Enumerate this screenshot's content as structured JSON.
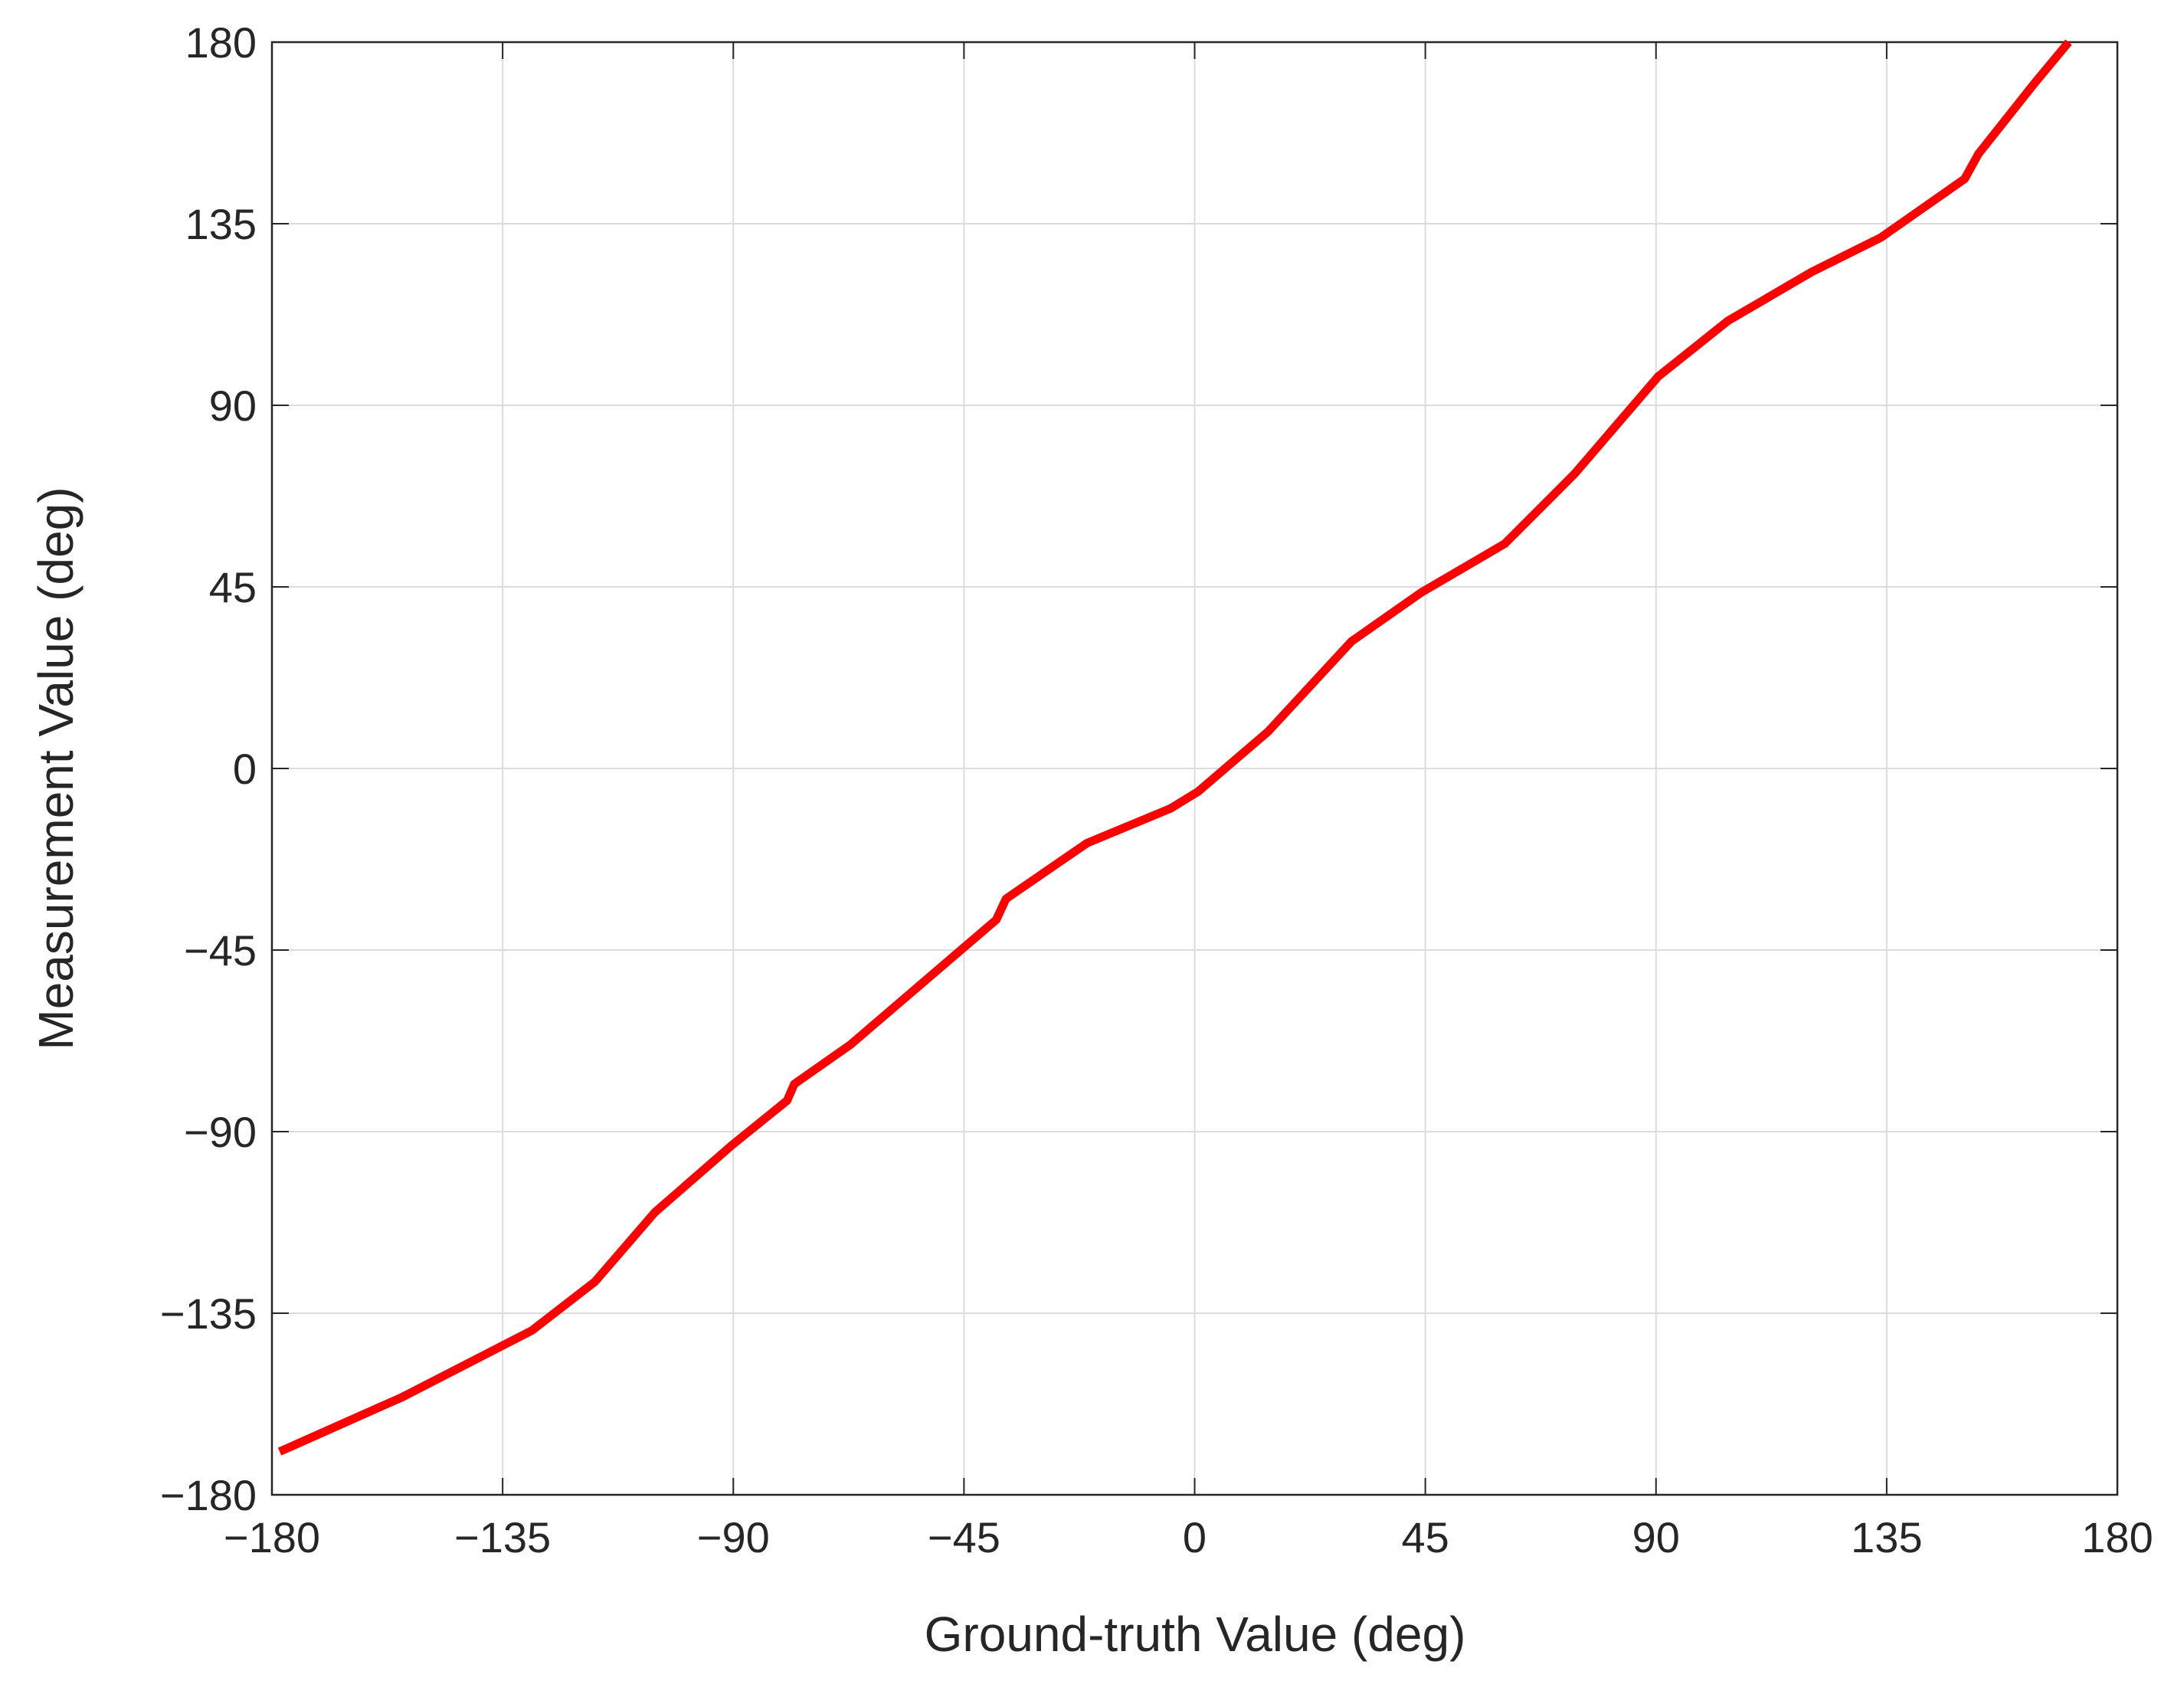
{
  "chart_data": {
    "type": "line",
    "xlabel": "Ground-truth Value (deg)",
    "ylabel": "Measurement Value (deg)",
    "xlim": [
      -180,
      180
    ],
    "ylim": [
      -180,
      180
    ],
    "xticks": [
      {
        "value": -180,
        "label": "−180"
      },
      {
        "value": -135,
        "label": "−135"
      },
      {
        "value": -90,
        "label": "−90"
      },
      {
        "value": -45,
        "label": "−45"
      },
      0,
      45,
      90,
      135,
      180
    ],
    "yticks": [
      {
        "value": -180,
        "label": "−180"
      },
      {
        "value": -135,
        "label": "−135"
      },
      {
        "value": -90,
        "label": "−90"
      },
      {
        "value": -45,
        "label": "−45"
      },
      0,
      45,
      90,
      135,
      180
    ],
    "grid": true,
    "series": [
      {
        "color": "#ff0000",
        "x": [
          -178.5,
          -154.6,
          -129.3,
          -117,
          -105.3,
          -90.3,
          -79.5,
          -78.1,
          -67.2,
          -53.6,
          -38.7,
          -36.8,
          -21,
          -4.7,
          0.7,
          14.3,
          30.6,
          44.2,
          60.5,
          74.1,
          90.4,
          104,
          120.3,
          133.9,
          150.2,
          152.9,
          163.7,
          170.5
        ],
        "values": [
          -169.3,
          -155.8,
          -139.3,
          -127.2,
          -110,
          -93.4,
          -82.3,
          -78.2,
          -68.5,
          -53.7,
          -37.5,
          -32.3,
          -18.5,
          -9.9,
          -5.7,
          9.1,
          31.5,
          43.6,
          55.7,
          73,
          97.1,
          110.9,
          123,
          131.6,
          146.1,
          152.3,
          169.6,
          180
        ]
      }
    ]
  }
}
